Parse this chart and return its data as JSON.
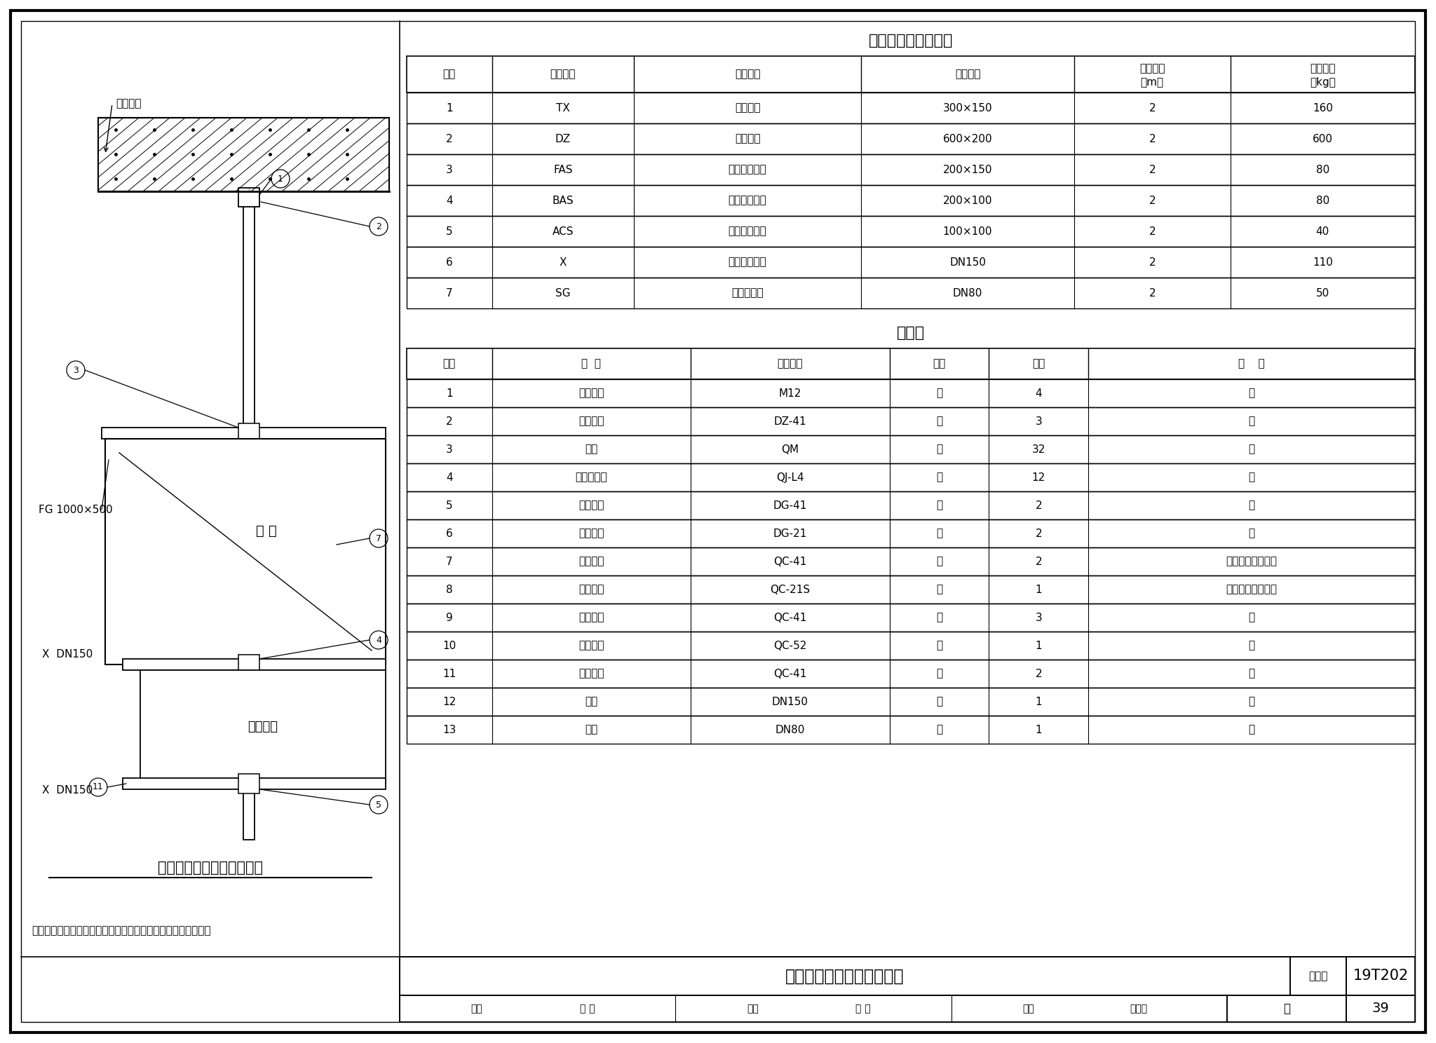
{
  "page_title": "综合管线支吊架图（十六）",
  "atlas_number": "19T202",
  "page_number": "39",
  "title1": "管道支架设计参数表",
  "table1_headers": [
    "序号",
    "管线代码",
    "管线名称",
    "管线规格",
    "吊架间距\n（m）",
    "管线重量\n（kg）"
  ],
  "table1_col_widths": [
    60,
    100,
    160,
    150,
    110,
    130
  ],
  "table1_data": [
    [
      "1",
      "TX",
      "通讯信号",
      "300×150",
      "2",
      "160"
    ],
    [
      "2",
      "DZ",
      "动照电缆",
      "600×200",
      "2",
      "600"
    ],
    [
      "3",
      "FAS",
      "火灾报警电缆",
      "200×150",
      "2",
      "80"
    ],
    [
      "4",
      "BAS",
      "环境监控电缆",
      "200×100",
      "2",
      "80"
    ],
    [
      "5",
      "ACS",
      "门禁系统电缆",
      "100×100",
      "2",
      "40"
    ],
    [
      "6",
      "X",
      "消火栓给水管",
      "DN150",
      "2",
      "110"
    ],
    [
      "7",
      "SG",
      "生活给水管",
      "DN80",
      "2",
      "50"
    ]
  ],
  "title2": "材料表",
  "table2_headers": [
    "序号",
    "名  称",
    "规格型号",
    "单位",
    "数量",
    "备    注"
  ],
  "table2_col_widths": [
    60,
    140,
    140,
    70,
    70,
    230
  ],
  "table2_data": [
    [
      "1",
      "机械锚栓",
      "M12",
      "个",
      "4",
      "－"
    ],
    [
      "2",
      "槽钢底座",
      "DZ-41",
      "个",
      "3",
      "－"
    ],
    [
      "3",
      "锁扣",
      "QM",
      "套",
      "32",
      "－"
    ],
    [
      "4",
      "直角连接件",
      "QJ-L4",
      "个",
      "12",
      "－"
    ],
    [
      "5",
      "槽钢端盖",
      "DG-41",
      "个",
      "2",
      "－"
    ],
    [
      "6",
      "槽钢端盖",
      "DG-21",
      "个",
      "2",
      "－"
    ],
    [
      "7",
      "立杆槽钢",
      "QC-41",
      "个",
      "2",
      "长度工程设计确定"
    ],
    [
      "8",
      "立杆槽钢",
      "QC-21S",
      "个",
      "1",
      "长度工程设计确定"
    ],
    [
      "9",
      "横担槽钢",
      "QC-41",
      "个",
      "3",
      "－"
    ],
    [
      "10",
      "横担槽钢",
      "QC-52",
      "个",
      "1",
      "－"
    ],
    [
      "11",
      "横担槽钢",
      "QC-41",
      "个",
      "2",
      "－"
    ],
    [
      "12",
      "管束",
      "DN150",
      "套",
      "1",
      "－"
    ],
    [
      "13",
      "管束",
      "DN80",
      "套",
      "1",
      "－"
    ]
  ],
  "drawing_title": "综合管线支吊架图（十六）",
  "label_fg": "FG 1000×500",
  "label_x1": "X  DN150",
  "label_x2": "X  DN150",
  "label_fenguan": "风 管",
  "label_dianlan": "电缆桥架",
  "label_huntb": "混凝土板",
  "note": "注：当荷载和间距任一参数大于本图数据时，应重新校核计算。",
  "bg_color": "#ffffff",
  "title_block_drawing_name": "综合管线支吊架图（十六）",
  "title_block_atlas_label": "图集号",
  "title_block_page_label": "页",
  "review_text": "审核 梅 棋",
  "proofread_text": "校对 周 炜",
  "design_text": "设计 李诚智"
}
